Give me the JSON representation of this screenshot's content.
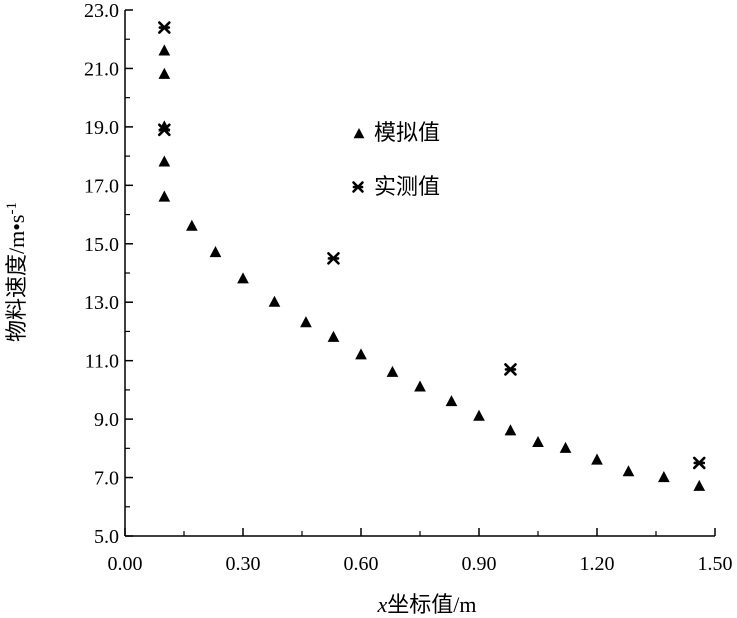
{
  "chart_data": {
    "type": "scatter",
    "title": "",
    "xlabel_var": "x",
    "xlabel": "坐标值/m",
    "ylabel": "物料速度/m•s",
    "ylabel_sup": "-1",
    "xlim": [
      0.0,
      1.5
    ],
    "ylim": [
      5.0,
      23.0
    ],
    "xticks": [
      "0.00",
      "0.30",
      "0.60",
      "0.90",
      "1.20",
      "1.50"
    ],
    "yticks": [
      "5.0",
      "7.0",
      "9.0",
      "11.0",
      "13.0",
      "15.0",
      "17.0",
      "19.0",
      "21.0",
      "23.0"
    ],
    "grid": false,
    "legend": "upper-middle",
    "series": [
      {
        "name": "模拟值",
        "marker": "triangle",
        "color": "#000000",
        "points": [
          [
            0.1,
            16.6
          ],
          [
            0.1,
            17.8
          ],
          [
            0.1,
            19.0
          ],
          [
            0.1,
            20.8
          ],
          [
            0.1,
            21.6
          ],
          [
            0.17,
            15.6
          ],
          [
            0.23,
            14.7
          ],
          [
            0.3,
            13.8
          ],
          [
            0.38,
            13.0
          ],
          [
            0.46,
            12.3
          ],
          [
            0.53,
            11.8
          ],
          [
            0.6,
            11.2
          ],
          [
            0.68,
            10.6
          ],
          [
            0.75,
            10.1
          ],
          [
            0.83,
            9.6
          ],
          [
            0.9,
            9.1
          ],
          [
            0.98,
            8.6
          ],
          [
            1.05,
            8.2
          ],
          [
            1.12,
            8.0
          ],
          [
            1.2,
            7.6
          ],
          [
            1.28,
            7.2
          ],
          [
            1.37,
            7.0
          ],
          [
            1.46,
            6.7
          ]
        ]
      },
      {
        "name": "实测值",
        "marker": "star",
        "color": "#000000",
        "points": [
          [
            0.1,
            22.4
          ],
          [
            0.1,
            18.9
          ],
          [
            0.53,
            14.5
          ],
          [
            0.98,
            10.7
          ],
          [
            1.46,
            7.5
          ]
        ]
      }
    ]
  }
}
